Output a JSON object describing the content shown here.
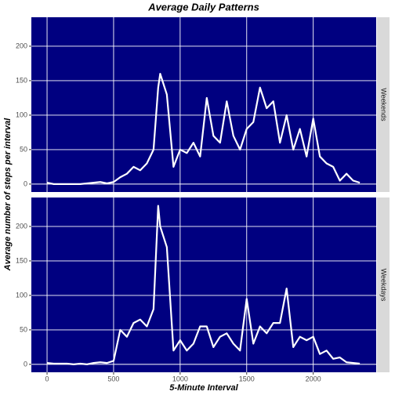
{
  "chart_data": {
    "type": "line",
    "title": "Average Daily Patterns",
    "x_label": "5-Minute Interval",
    "y_label": "Average number of steps per interval",
    "x": [
      0,
      50,
      100,
      150,
      200,
      250,
      300,
      350,
      400,
      450,
      500,
      550,
      600,
      650,
      700,
      750,
      800,
      835,
      850,
      900,
      950,
      1000,
      1050,
      1100,
      1150,
      1200,
      1250,
      1300,
      1350,
      1400,
      1450,
      1500,
      1550,
      1600,
      1650,
      1700,
      1750,
      1800,
      1850,
      1900,
      1950,
      2000,
      2050,
      2100,
      2150,
      2200,
      2250,
      2300,
      2350
    ],
    "series": [
      {
        "name": "Weekends",
        "color": "#ffffff",
        "values": [
          2,
          0,
          0,
          0,
          0,
          0,
          1,
          2,
          3,
          1,
          3,
          10,
          15,
          25,
          20,
          30,
          50,
          140,
          160,
          130,
          25,
          50,
          45,
          60,
          40,
          125,
          70,
          60,
          120,
          70,
          50,
          80,
          90,
          140,
          110,
          120,
          60,
          100,
          50,
          80,
          40,
          95,
          40,
          30,
          25,
          5,
          15,
          5,
          2
        ]
      },
      {
        "name": "Weekdays",
        "color": "#ffffff",
        "values": [
          2,
          1,
          1,
          1,
          0,
          1,
          0,
          2,
          3,
          2,
          5,
          50,
          40,
          60,
          65,
          55,
          80,
          230,
          200,
          170,
          20,
          35,
          20,
          30,
          55,
          55,
          25,
          40,
          45,
          30,
          20,
          95,
          30,
          55,
          45,
          60,
          60,
          110,
          25,
          40,
          35,
          40,
          15,
          20,
          8,
          10,
          3,
          2,
          1
        ]
      }
    ],
    "xlim": [
      -118,
      2473
    ],
    "xticks": [
      0,
      500,
      1000,
      1500,
      2000
    ],
    "ylim": [
      -11.5,
      242
    ],
    "yticks": [
      0,
      50,
      100,
      150,
      200
    ],
    "background": "#000080",
    "grid": true
  }
}
